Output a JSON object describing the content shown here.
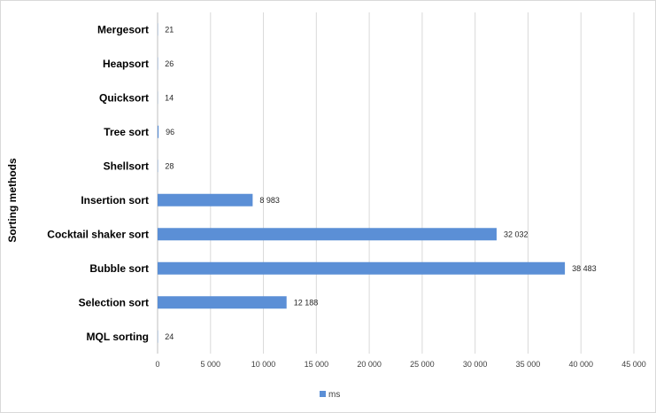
{
  "chart_data": {
    "type": "bar",
    "orientation": "horizontal",
    "categories": [
      "Mergesort",
      "Heapsort",
      "Quicksort",
      "Tree sort",
      "Shellsort",
      "Insertion sort",
      "Cocktail shaker sort",
      "Bubble sort",
      "Selection sort",
      "MQL sorting"
    ],
    "series": [
      {
        "name": "ms",
        "values": [
          21,
          26,
          14,
          96,
          28,
          8983,
          32032,
          38483,
          12188,
          24
        ]
      }
    ],
    "data_labels": [
      "21",
      "26",
      "14",
      "96",
      "28",
      "8 983",
      "32 032",
      "38 483",
      "12 188",
      "24"
    ],
    "xlim": [
      0,
      45000
    ],
    "x_ticks": [
      0,
      5000,
      10000,
      15000,
      20000,
      25000,
      30000,
      35000,
      40000,
      45000
    ],
    "x_tick_labels": [
      "0",
      "5 000",
      "10 000",
      "15 000",
      "20 000",
      "25 000",
      "30 000",
      "35 000",
      "40 000",
      "45 000"
    ],
    "ylabel": "Sorting methods",
    "grid": "vertical",
    "legend_position": "bottom",
    "colors": {
      "bar": "#5B8FD6",
      "grid": "#d9d9d9",
      "axis": "#bfbfbf"
    }
  }
}
